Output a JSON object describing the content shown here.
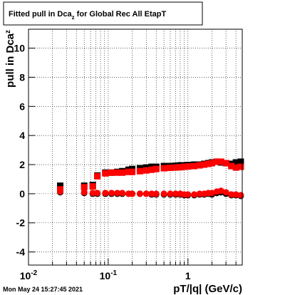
{
  "chart_data": {
    "type": "scatter",
    "title": {
      "text": "Fitted pull in Dca",
      "sub": "z",
      "rest": " for Global Rec All EtapT"
    },
    "xlabel": "pT/|q| (GeV/c)",
    "ylabel": {
      "text": "pull in Dca",
      "sub": "z"
    },
    "timestamp": "Mon May 24 15:27:45 2021",
    "xscale": "log",
    "xlim": [
      0.01,
      4.8
    ],
    "ylim": [
      -4.9,
      11.3
    ],
    "xticks": [
      {
        "value": 0.01,
        "label": "10",
        "exponent": "-2"
      },
      {
        "value": 0.1,
        "label": "10",
        "exponent": "-1"
      },
      1
    ],
    "x_minor_ticks": [
      0.02,
      0.03,
      0.04,
      0.05,
      0.06,
      0.07,
      0.08,
      0.09,
      0.2,
      0.3,
      0.4,
      0.5,
      0.6,
      0.7,
      0.8,
      0.9,
      2,
      3,
      4
    ],
    "yticks": [
      -4,
      -2,
      0,
      2,
      4,
      6,
      8,
      10
    ],
    "grid": true,
    "x": [
      0.025,
      0.05,
      0.064,
      0.073,
      0.092,
      0.11,
      0.13,
      0.15,
      0.18,
      0.2,
      0.25,
      0.3,
      0.35,
      0.4,
      0.5,
      0.6,
      0.7,
      0.8,
      0.9,
      1.0,
      1.2,
      1.4,
      1.6,
      1.8,
      2.0,
      2.3,
      2.6,
      3.0,
      3.5,
      4.0,
      4.6
    ],
    "series": [
      {
        "color": "#000000",
        "marker": "square",
        "values": [
          0.55,
          0.55,
          0.6,
          1.25,
          1.45,
          1.45,
          1.5,
          1.55,
          1.65,
          1.7,
          1.75,
          1.8,
          1.85,
          1.85,
          1.9,
          1.9,
          1.92,
          1.95,
          1.95,
          1.97,
          2.0,
          2.0,
          2.05,
          2.1,
          2.15,
          2.2,
          2.15,
          2.1,
          2.05,
          2.15,
          2.2
        ]
      },
      {
        "color": "#000000",
        "marker": "circle",
        "values": [
          0.1,
          0.05,
          0.0,
          0.0,
          0.0,
          0.0,
          0.0,
          0.0,
          0.0,
          0.0,
          0.0,
          0.0,
          -0.05,
          -0.05,
          -0.05,
          -0.05,
          -0.05,
          -0.05,
          -0.1,
          -0.1,
          -0.1,
          -0.05,
          -0.05,
          0.0,
          -0.05,
          0.05,
          0.1,
          0.0,
          -0.1,
          -0.1,
          -0.15
        ]
      },
      {
        "color": "#ff0000",
        "marker": "square",
        "values": [
          0.3,
          0.45,
          0.5,
          1.2,
          1.4,
          1.45,
          1.45,
          1.45,
          1.5,
          1.5,
          1.55,
          1.6,
          1.65,
          1.7,
          1.75,
          1.78,
          1.8,
          1.82,
          1.85,
          1.87,
          1.9,
          1.95,
          2.0,
          2.05,
          2.1,
          2.2,
          2.2,
          2.1,
          1.9,
          1.8,
          1.85
        ]
      },
      {
        "color": "#ff0000",
        "marker": "circle",
        "values": [
          0.15,
          0.1,
          0.05,
          0.05,
          0.05,
          0.05,
          0.05,
          0.05,
          0.0,
          0.0,
          0.0,
          0.0,
          0.0,
          0.0,
          0.0,
          0.0,
          0.0,
          0.0,
          -0.05,
          -0.05,
          -0.05,
          0.0,
          0.0,
          0.05,
          0.05,
          0.15,
          0.2,
          0.1,
          -0.05,
          -0.05,
          -0.1
        ]
      }
    ]
  }
}
